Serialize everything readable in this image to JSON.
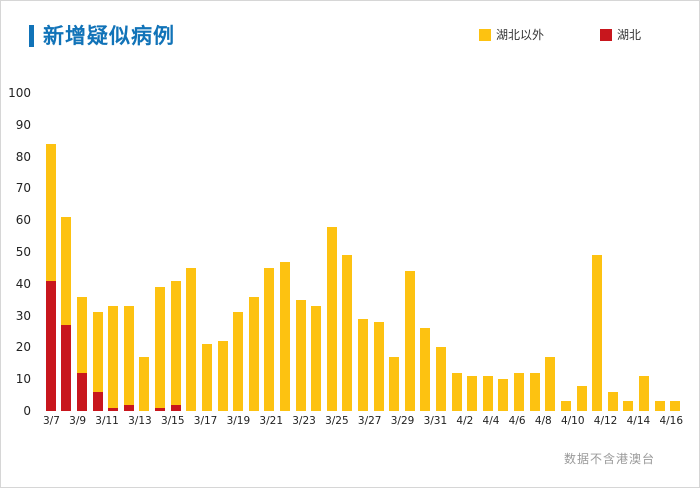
{
  "header": {
    "title": "新增疑似病例"
  },
  "legend": [
    {
      "id": "outside-hubei",
      "label": "湖北以外",
      "color": "#fdc211"
    },
    {
      "id": "hubei",
      "label": "湖北",
      "color": "#c8161d"
    }
  ],
  "footer": {
    "note": "数据不含港澳台"
  },
  "colors": {
    "title_accent": "#1173b8",
    "outside_hubei_bar": "#fdc211",
    "hubei_bar": "#c8161d"
  },
  "chart_data": {
    "type": "bar",
    "stacked": true,
    "title": "新增疑似病例",
    "xlabel": "",
    "ylabel": "",
    "ylim": [
      0,
      100
    ],
    "yticks": [
      0,
      10,
      20,
      30,
      40,
      50,
      60,
      70,
      80,
      90,
      100
    ],
    "grid": false,
    "legend_position": "top-right",
    "x_label_every": 2,
    "categories": [
      "3/7",
      "3/8",
      "3/9",
      "3/10",
      "3/11",
      "3/12",
      "3/13",
      "3/14",
      "3/15",
      "3/16",
      "3/17",
      "3/18",
      "3/19",
      "3/20",
      "3/21",
      "3/22",
      "3/23",
      "3/24",
      "3/25",
      "3/26",
      "3/27",
      "3/28",
      "3/29",
      "3/30",
      "3/31",
      "4/1",
      "4/2",
      "4/3",
      "4/4",
      "4/5",
      "4/6",
      "4/7",
      "4/8",
      "4/9",
      "4/10",
      "4/11",
      "4/12",
      "4/13",
      "4/14",
      "4/15",
      "4/16"
    ],
    "series": [
      {
        "name": "湖北",
        "color": "#c8161d",
        "values": [
          41,
          27,
          12,
          6,
          1,
          2,
          0,
          1,
          2,
          0,
          0,
          0,
          0,
          0,
          0,
          0,
          0,
          0,
          0,
          0,
          0,
          0,
          0,
          0,
          0,
          0,
          0,
          0,
          0,
          0,
          0,
          0,
          0,
          0,
          0,
          0,
          0,
          0,
          0,
          0,
          0
        ]
      },
      {
        "name": "湖北以外",
        "color": "#fdc211",
        "values": [
          43,
          34,
          24,
          25,
          32,
          31,
          17,
          38,
          39,
          45,
          21,
          22,
          31,
          36,
          45,
          47,
          35,
          33,
          58,
          49,
          29,
          28,
          17,
          44,
          26,
          20,
          12,
          11,
          11,
          10,
          12,
          12,
          17,
          3,
          8,
          49,
          6,
          3,
          11,
          3,
          3
        ]
      }
    ]
  }
}
